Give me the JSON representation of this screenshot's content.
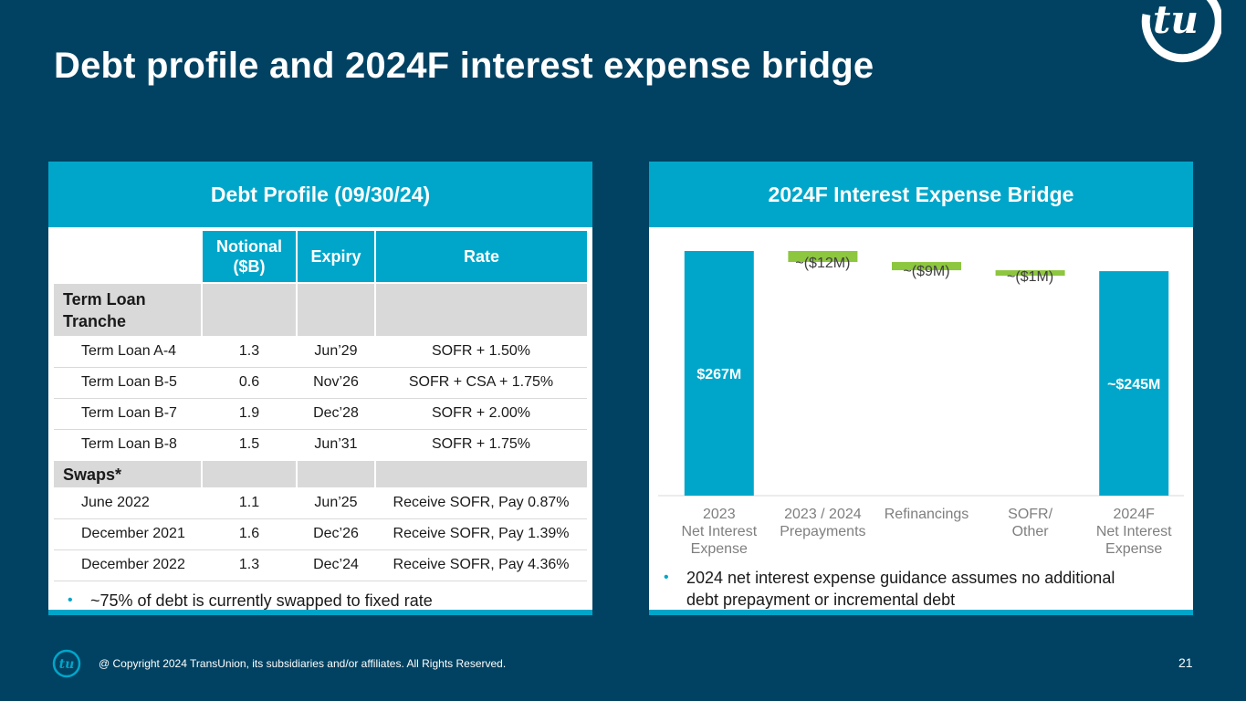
{
  "slide": {
    "title": "Debt profile and 2024F interest expense bridge",
    "copyright": "@ Copyright 2024 TransUnion, its subsidiaries and/or affiliates.  All Rights Reserved.",
    "page_number": "21",
    "logo_text": "tu",
    "colors": {
      "background": "#014262",
      "accent": "#00A6CA",
      "green": "#8DC63F",
      "gray": "#D9D9D9"
    }
  },
  "debt_profile": {
    "header": "Debt Profile (09/30/24)",
    "columns": [
      "Notional ($B)",
      "Expiry",
      "Rate"
    ],
    "sections": [
      {
        "label": "Term Loan Tranche",
        "rows": [
          {
            "name": "Term Loan A-4",
            "notional": "1.3",
            "expiry": "Jun’29",
            "rate": "SOFR + 1.50%"
          },
          {
            "name": "Term Loan B-5",
            "notional": "0.6",
            "expiry": "Nov’26",
            "rate": "SOFR + CSA + 1.75%"
          },
          {
            "name": "Term Loan B-7",
            "notional": "1.9",
            "expiry": "Dec’28",
            "rate": "SOFR + 2.00%"
          },
          {
            "name": "Term Loan B-8",
            "notional": "1.5",
            "expiry": "Jun’31",
            "rate": "SOFR + 1.75%"
          }
        ]
      },
      {
        "label": "Swaps*",
        "rows": [
          {
            "name": "June 2022",
            "notional": "1.1",
            "expiry": "Jun’25",
            "rate": "Receive SOFR, Pay 0.87%"
          },
          {
            "name": "December 2021",
            "notional": "1.6",
            "expiry": "Dec’26",
            "rate": "Receive SOFR, Pay 1.39%"
          },
          {
            "name": "December 2022",
            "notional": "1.3",
            "expiry": "Dec’24",
            "rate": "Receive SOFR, Pay 4.36%"
          }
        ]
      }
    ],
    "footnote": "~75% of debt is currently swapped to fixed rate"
  },
  "bridge": {
    "header": "2024F Interest Expense Bridge",
    "footnote_line1": "2024 net interest expense guidance assumes no additional",
    "footnote_line2": "debt prepayment or incremental debt"
  },
  "chart_data": {
    "type": "bar",
    "subtype": "waterfall",
    "title": "2024F Interest Expense Bridge",
    "unit": "$M",
    "ylim": [
      0,
      267
    ],
    "categories": [
      [
        "2023",
        "Net Interest",
        "Expense"
      ],
      [
        "2023 / 2024",
        "Prepayments"
      ],
      [
        "Refinancings"
      ],
      [
        "SOFR/",
        "Other"
      ],
      [
        "2024F",
        "Net Interest",
        "Expense"
      ]
    ],
    "bars": [
      {
        "kind": "total",
        "start": 0,
        "end": 267,
        "label": "$267M",
        "color": "#00A6CA"
      },
      {
        "kind": "delta",
        "start": 267,
        "end": 255,
        "label": "~($12M)",
        "color": "#8DC63F"
      },
      {
        "kind": "delta",
        "start": 255,
        "end": 246,
        "label": "~($9M)",
        "color": "#8DC63F"
      },
      {
        "kind": "delta",
        "start": 246,
        "end": 245,
        "label": "~($1M)",
        "color": "#8DC63F"
      },
      {
        "kind": "total",
        "start": 0,
        "end": 245,
        "label": "~$245M",
        "color": "#00A6CA"
      }
    ]
  }
}
